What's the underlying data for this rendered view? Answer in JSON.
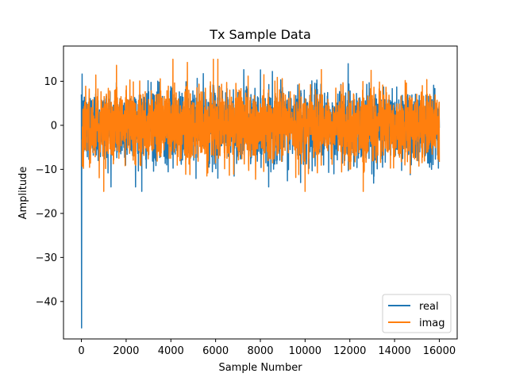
{
  "chart_data": {
    "type": "line",
    "title": "Tx Sample Data",
    "xlabel": "Sample Number",
    "ylabel": "Amplitude",
    "xlim": [
      -800,
      16800
    ],
    "ylim": [
      -48.5,
      18
    ],
    "xticks": [
      0,
      2000,
      4000,
      6000,
      8000,
      10000,
      12000,
      14000,
      16000
    ],
    "xtick_labels": [
      "0",
      "2000",
      "4000",
      "6000",
      "8000",
      "10000",
      "12000",
      "14000",
      "16000"
    ],
    "yticks": [
      10,
      0,
      -10,
      -20,
      -30,
      -40
    ],
    "ytick_labels": [
      "10",
      "0",
      "−10",
      "−20",
      "−30",
      "−40"
    ],
    "legend_position": "lower-right",
    "x_range": [
      0,
      16000
    ],
    "series": [
      {
        "name": "real",
        "color": "#1f77b4",
        "initial_values": [
          7,
          -46,
          0,
          -8
        ],
        "noise_sigma": 4.2,
        "noise_clip": 14,
        "notable_points": [
          [
            2700,
            -15
          ],
          [
            6100,
            -12
          ],
          [
            9800,
            -13
          ]
        ]
      },
      {
        "name": "imag",
        "color": "#ff7f0e",
        "noise_sigma": 4.2,
        "noise_clip": 15,
        "notable_points": [
          [
            1000,
            -15
          ],
          [
            5900,
            15
          ],
          [
            6100,
            15
          ],
          [
            10000,
            -15
          ],
          [
            12600,
            -15
          ]
        ]
      }
    ]
  }
}
